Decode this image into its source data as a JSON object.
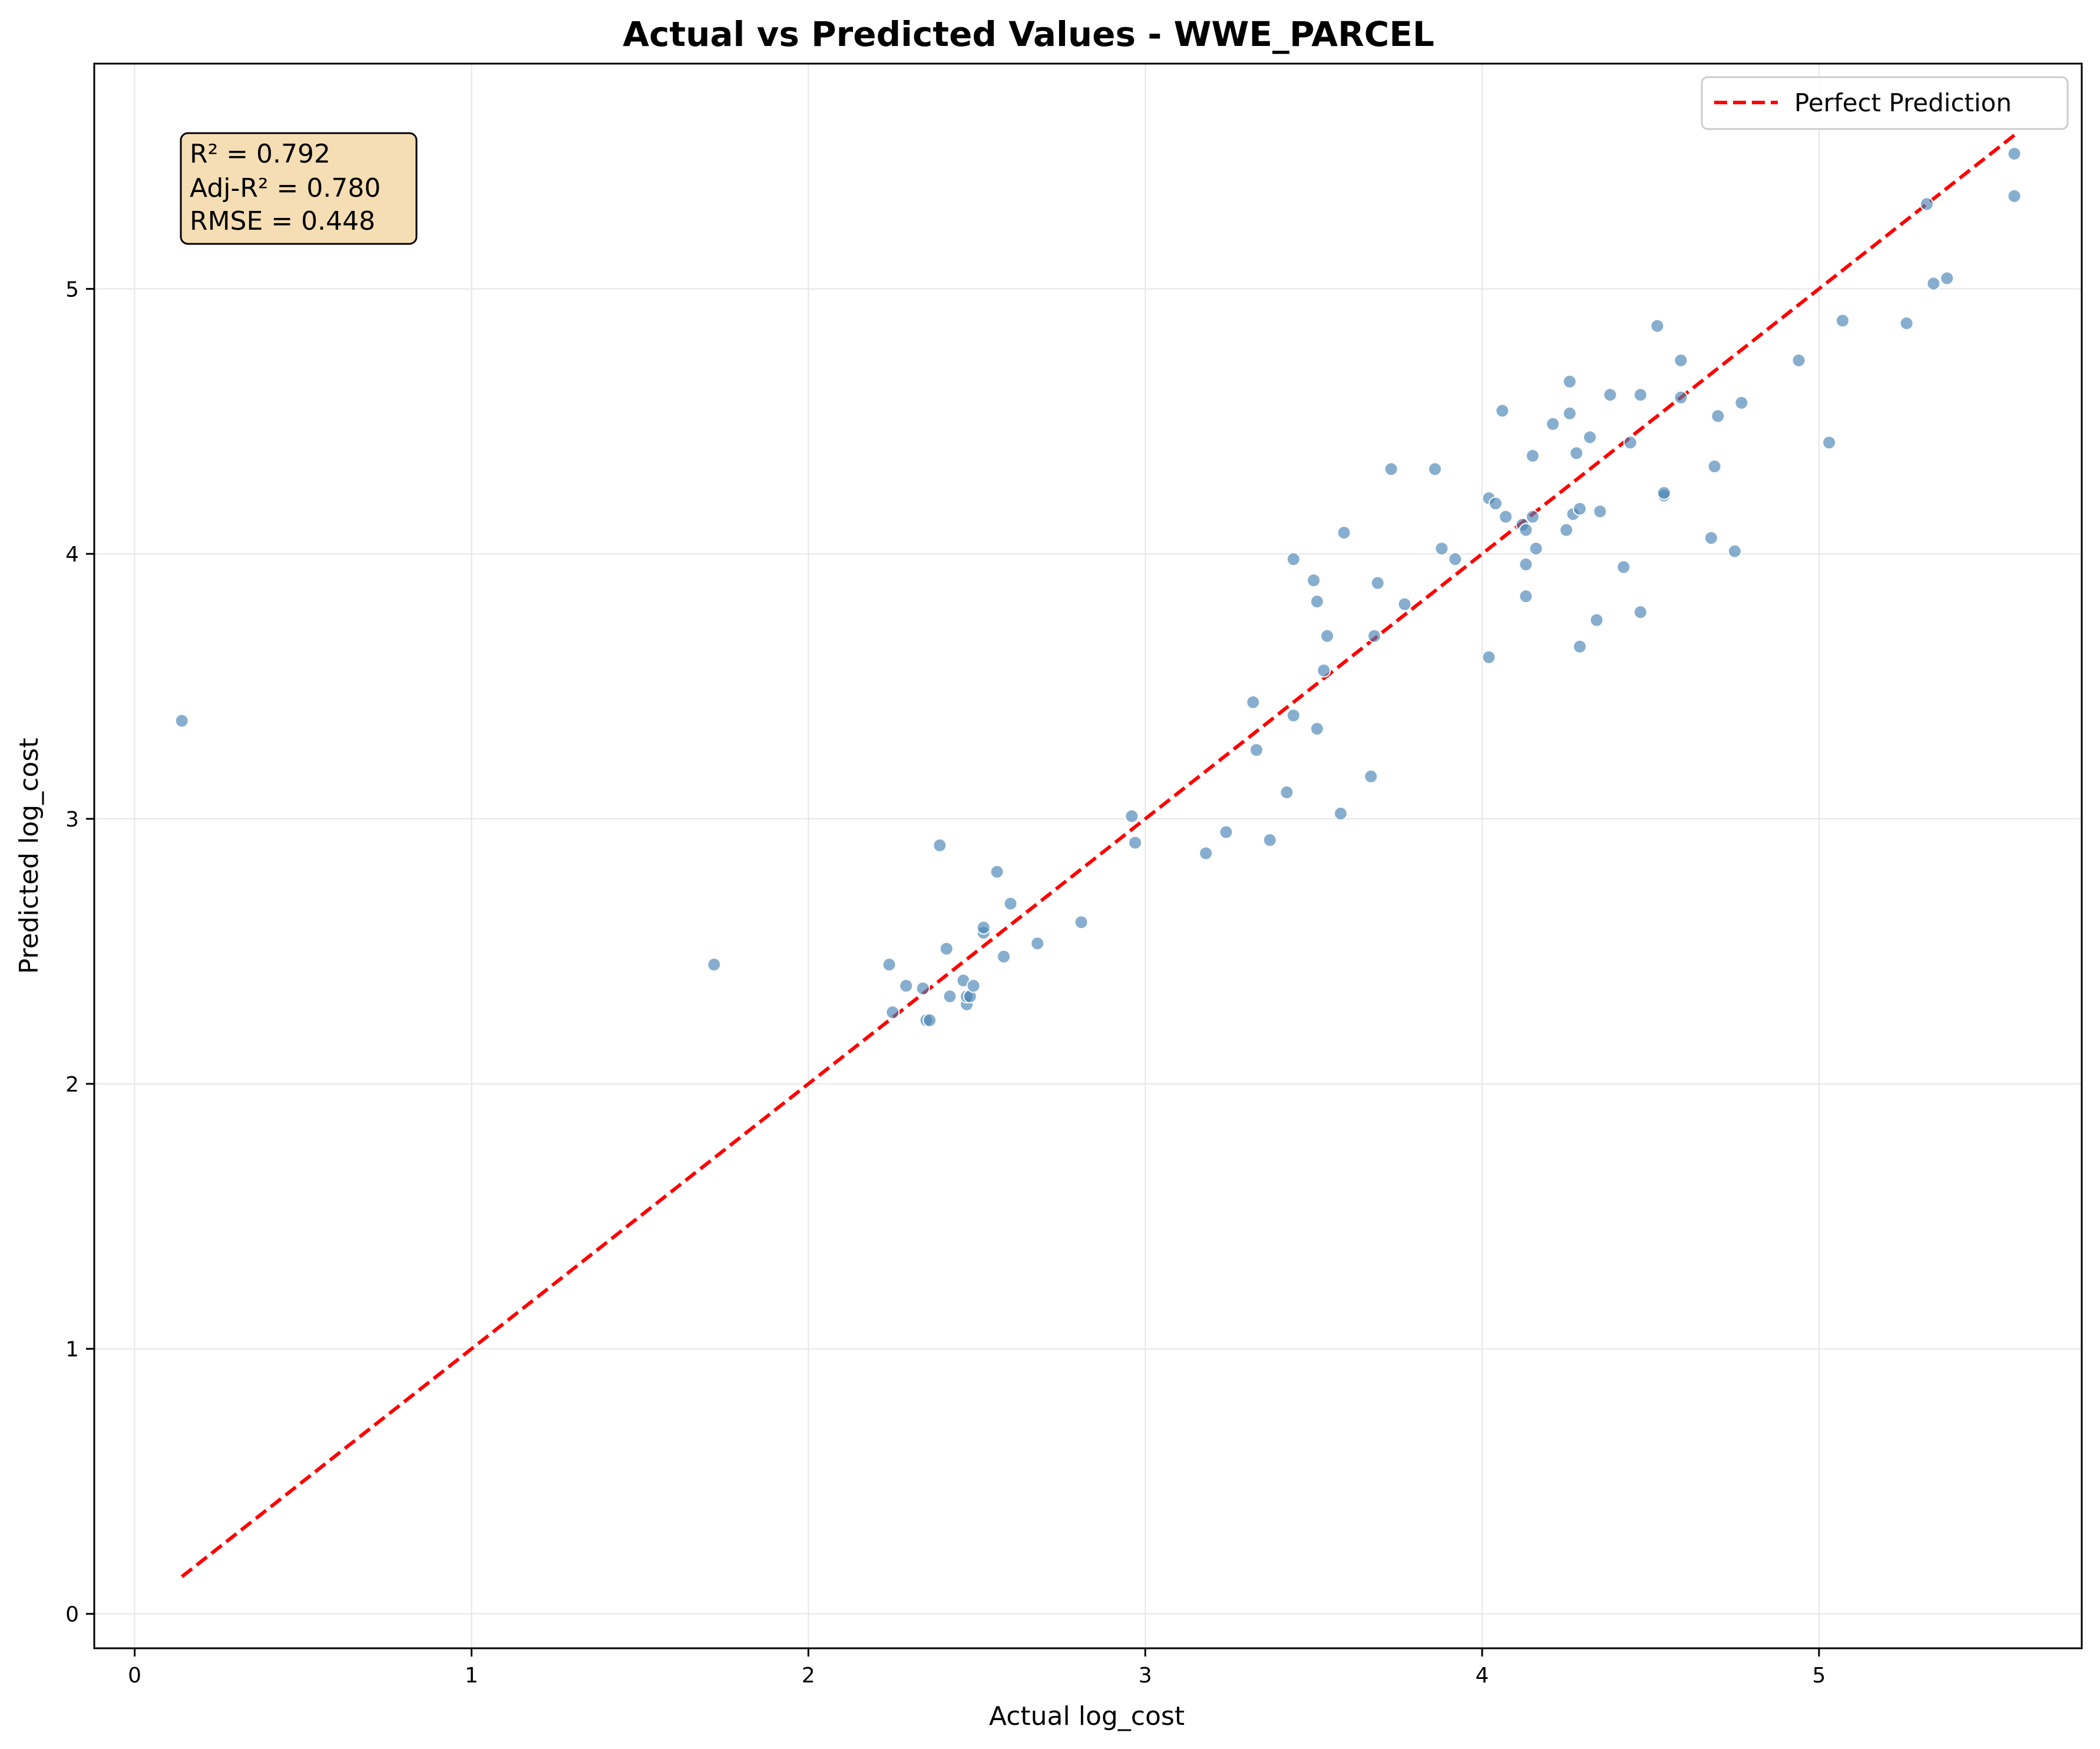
{
  "chart_data": {
    "type": "scatter",
    "title": "Actual vs Predicted Values - WWE_PARCEL",
    "xlabel": "Actual log_cost",
    "ylabel": "Predicted log_cost",
    "xlim": [
      -0.12,
      5.78
    ],
    "ylim": [
      -0.13,
      5.85
    ],
    "xticks": [
      0,
      1,
      2,
      3,
      4,
      5
    ],
    "yticks": [
      0,
      1,
      2,
      3,
      4,
      5
    ],
    "grid": true,
    "legend": {
      "position": "top-right",
      "entries": [
        "Perfect Prediction"
      ]
    },
    "stats_box": {
      "position": "top-left",
      "lines": [
        "R² = 0.792",
        "Adj-R² = 0.780",
        "RMSE = 0.448"
      ]
    },
    "colors": {
      "points": "#4682b4",
      "reference_line": "#ff0000",
      "stats_box_fill": "#f5deb3"
    },
    "reference_line": {
      "name": "Perfect Prediction",
      "x": [
        0.14,
        5.58
      ],
      "y": [
        0.14,
        5.58
      ]
    },
    "points": [
      [
        0.14,
        3.37
      ],
      [
        1.72,
        2.45
      ],
      [
        2.24,
        2.45
      ],
      [
        2.25,
        2.27
      ],
      [
        2.29,
        2.37
      ],
      [
        2.34,
        2.36
      ],
      [
        2.35,
        2.24
      ],
      [
        2.36,
        2.24
      ],
      [
        2.39,
        2.9
      ],
      [
        2.41,
        2.51
      ],
      [
        2.42,
        2.33
      ],
      [
        2.46,
        2.39
      ],
      [
        2.47,
        2.3
      ],
      [
        2.47,
        2.33
      ],
      [
        2.48,
        2.33
      ],
      [
        2.49,
        2.37
      ],
      [
        2.52,
        2.57
      ],
      [
        2.52,
        2.59
      ],
      [
        2.56,
        2.8
      ],
      [
        2.58,
        2.48
      ],
      [
        2.6,
        2.68
      ],
      [
        2.68,
        2.53
      ],
      [
        2.81,
        2.61
      ],
      [
        2.96,
        3.01
      ],
      [
        2.97,
        2.91
      ],
      [
        3.18,
        2.87
      ],
      [
        3.24,
        2.95
      ],
      [
        3.32,
        3.44
      ],
      [
        3.33,
        3.26
      ],
      [
        3.37,
        2.92
      ],
      [
        3.42,
        3.1
      ],
      [
        3.44,
        3.39
      ],
      [
        3.44,
        3.98
      ],
      [
        3.5,
        3.9
      ],
      [
        3.51,
        3.82
      ],
      [
        3.51,
        3.34
      ],
      [
        3.53,
        3.56
      ],
      [
        3.54,
        3.69
      ],
      [
        3.58,
        3.02
      ],
      [
        3.59,
        4.08
      ],
      [
        3.67,
        3.16
      ],
      [
        3.68,
        3.69
      ],
      [
        3.69,
        3.89
      ],
      [
        3.73,
        4.32
      ],
      [
        3.77,
        3.81
      ],
      [
        3.86,
        4.32
      ],
      [
        3.88,
        4.02
      ],
      [
        3.92,
        3.98
      ],
      [
        4.02,
        3.61
      ],
      [
        4.02,
        4.21
      ],
      [
        4.04,
        4.19
      ],
      [
        4.06,
        4.54
      ],
      [
        4.07,
        4.14
      ],
      [
        4.12,
        4.11
      ],
      [
        4.13,
        4.09
      ],
      [
        4.13,
        3.96
      ],
      [
        4.13,
        3.84
      ],
      [
        4.15,
        4.14
      ],
      [
        4.15,
        4.37
      ],
      [
        4.16,
        4.02
      ],
      [
        4.21,
        4.49
      ],
      [
        4.25,
        4.09
      ],
      [
        4.26,
        4.53
      ],
      [
        4.26,
        4.65
      ],
      [
        4.27,
        4.15
      ],
      [
        4.28,
        4.38
      ],
      [
        4.29,
        4.17
      ],
      [
        4.29,
        3.65
      ],
      [
        4.32,
        4.44
      ],
      [
        4.34,
        3.75
      ],
      [
        4.35,
        4.16
      ],
      [
        4.38,
        4.6
      ],
      [
        4.42,
        3.95
      ],
      [
        4.44,
        4.42
      ],
      [
        4.47,
        4.6
      ],
      [
        4.47,
        3.78
      ],
      [
        4.52,
        4.86
      ],
      [
        4.54,
        4.22
      ],
      [
        4.54,
        4.23
      ],
      [
        4.59,
        4.73
      ],
      [
        4.59,
        4.59
      ],
      [
        4.68,
        4.06
      ],
      [
        4.69,
        4.33
      ],
      [
        4.7,
        4.52
      ],
      [
        4.75,
        4.01
      ],
      [
        4.77,
        4.57
      ],
      [
        4.94,
        4.73
      ],
      [
        5.03,
        4.42
      ],
      [
        5.07,
        4.88
      ],
      [
        5.26,
        4.87
      ],
      [
        5.32,
        5.32
      ],
      [
        5.34,
        5.02
      ],
      [
        5.38,
        5.04
      ],
      [
        5.58,
        5.51
      ],
      [
        5.58,
        5.35
      ]
    ]
  }
}
